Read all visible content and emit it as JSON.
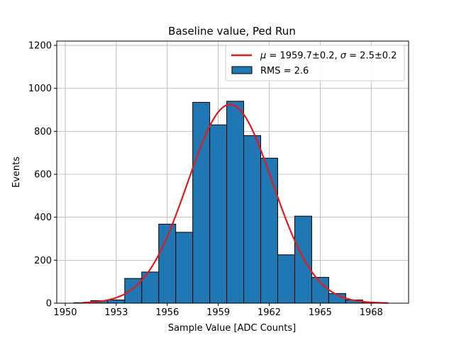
{
  "chart_data": {
    "type": "bar",
    "title": "Baseline value, Ped Run",
    "xlabel": "Sample Value [ADC Counts]",
    "ylabel": "Events",
    "xlim": [
      1949.5,
      1970.2
    ],
    "ylim": [
      0,
      1220
    ],
    "xticks": [
      1950,
      1953,
      1956,
      1959,
      1962,
      1965,
      1968
    ],
    "yticks": [
      0,
      200,
      400,
      600,
      800,
      1000,
      1200
    ],
    "grid": true,
    "legend_position": "top-right",
    "colors": {
      "bars": "#1f77b4",
      "fit": "#e31a1c"
    },
    "histogram": {
      "name": "RMS = 2.6",
      "bin_edges": [
        1950.5,
        1951.5,
        1952.5,
        1953.5,
        1954.5,
        1955.5,
        1956.5,
        1957.5,
        1958.5,
        1959.5,
        1960.5,
        1961.5,
        1962.5,
        1963.5,
        1964.5,
        1965.5,
        1966.5,
        1967.5,
        1968.5
      ],
      "counts": [
        2,
        12,
        15,
        115,
        145,
        368,
        330,
        935,
        830,
        940,
        780,
        675,
        225,
        405,
        120,
        45,
        15,
        2
      ]
    },
    "fit": {
      "name": "μ = 1959.7±0.2, σ = 2.5±0.2",
      "legend_mu": "μ",
      "legend_sigma": "σ",
      "legend_mu_value": " = 1959.7±0.2, ",
      "legend_sigma_value": " = 2.5±0.2",
      "mu": 1959.7,
      "sigma": 2.5,
      "amplitude": 925,
      "x_range": [
        1951,
        1969
      ]
    }
  }
}
